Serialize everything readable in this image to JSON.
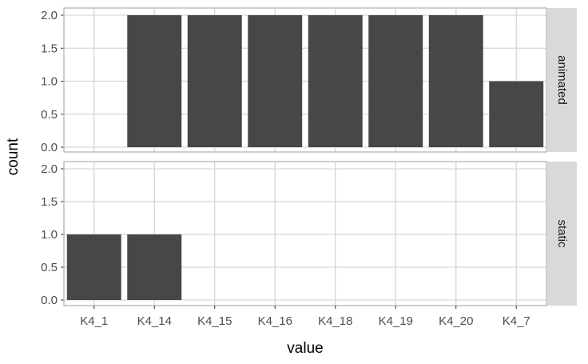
{
  "chart_data": {
    "type": "bar",
    "xlabel": "value",
    "ylabel": "count",
    "categories": [
      "K4_1",
      "K4_14",
      "K4_15",
      "K4_16",
      "K4_18",
      "K4_19",
      "K4_20",
      "K4_7"
    ],
    "ylim": [
      0,
      2
    ],
    "y_ticks": [
      "0.0",
      "0.5",
      "1.0",
      "1.5",
      "2.0"
    ],
    "grid": true,
    "facet": "rows",
    "panels": [
      {
        "name": "animated",
        "values": [
          0,
          2,
          2,
          2,
          2,
          2,
          2,
          1
        ]
      },
      {
        "name": "static",
        "values": [
          1,
          1,
          0,
          0,
          0,
          0,
          0,
          0
        ]
      }
    ],
    "colors": {
      "bar": "#474747",
      "panel_border": "#b3b3b3",
      "grid": "#d6d6d6",
      "strip": "#d9d9d9"
    }
  }
}
